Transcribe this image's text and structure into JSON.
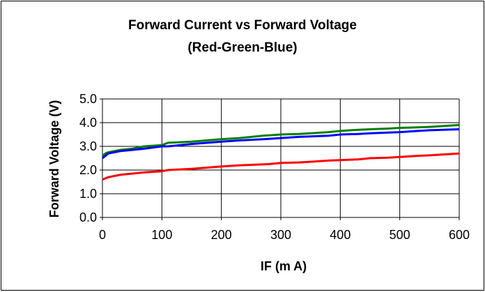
{
  "chart_data": {
    "type": "line",
    "title": "Forward Current vs Forward Voltage",
    "subtitle": "(Red-Green-Blue)",
    "xlabel": "IF (m A)",
    "ylabel": "Forward Voltage (V)",
    "xlim": [
      0,
      600
    ],
    "ylim": [
      0.0,
      5.0
    ],
    "xticks": [
      "0",
      "100",
      "200",
      "300",
      "400",
      "500",
      "600"
    ],
    "yticks": [
      "0.0",
      "1.0",
      "2.0",
      "3.0",
      "4.0",
      "5.0"
    ],
    "grid": true,
    "legend": "none",
    "series": [
      {
        "color": "#ff0000",
        "x": [
          0,
          5,
          10,
          20,
          30,
          50,
          70,
          100,
          110,
          150,
          200,
          230,
          280,
          300,
          330,
          350,
          380,
          400,
          430,
          450,
          480,
          500,
          530,
          550,
          600
        ],
        "y": [
          1.6,
          1.65,
          1.7,
          1.75,
          1.8,
          1.85,
          1.9,
          1.95,
          2.0,
          2.05,
          2.15,
          2.2,
          2.25,
          2.3,
          2.32,
          2.35,
          2.4,
          2.42,
          2.45,
          2.5,
          2.52,
          2.55,
          2.6,
          2.62,
          2.7
        ]
      },
      {
        "color": "#008000",
        "x": [
          0,
          5,
          10,
          20,
          30,
          50,
          70,
          100,
          110,
          150,
          200,
          230,
          270,
          300,
          330,
          350,
          380,
          400,
          430,
          450,
          480,
          500,
          530,
          550,
          600
        ],
        "y": [
          2.6,
          2.7,
          2.75,
          2.8,
          2.85,
          2.9,
          3.0,
          3.05,
          3.15,
          3.2,
          3.3,
          3.35,
          3.45,
          3.5,
          3.52,
          3.55,
          3.6,
          3.65,
          3.7,
          3.72,
          3.75,
          3.78,
          3.8,
          3.82,
          3.9
        ]
      },
      {
        "color": "#0000ff",
        "x": [
          0,
          5,
          10,
          20,
          30,
          50,
          70,
          100,
          110,
          150,
          200,
          230,
          270,
          300,
          330,
          350,
          380,
          400,
          430,
          450,
          480,
          500,
          530,
          550,
          600
        ],
        "y": [
          2.5,
          2.6,
          2.7,
          2.75,
          2.8,
          2.85,
          2.9,
          3.0,
          3.0,
          3.1,
          3.2,
          3.25,
          3.3,
          3.35,
          3.4,
          3.42,
          3.45,
          3.5,
          3.52,
          3.55,
          3.58,
          3.6,
          3.65,
          3.68,
          3.72
        ]
      }
    ]
  }
}
